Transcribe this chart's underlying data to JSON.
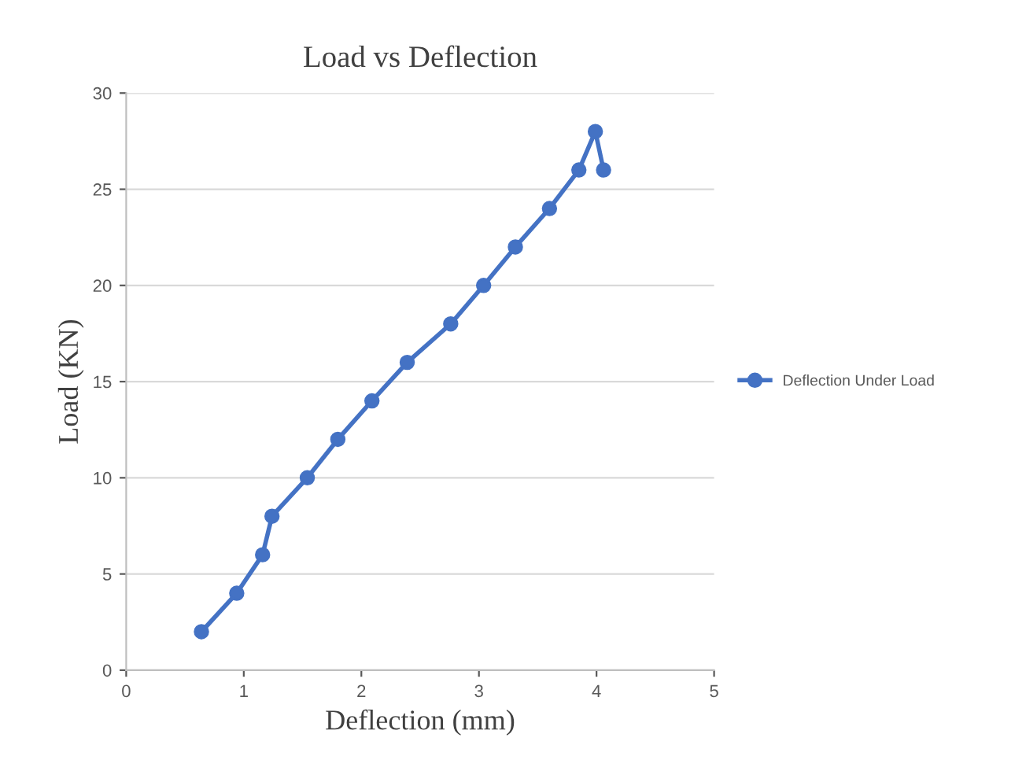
{
  "chart_data": {
    "type": "line",
    "title": "Load vs Deflection",
    "xlabel": "Deflection (mm)",
    "ylabel": "Load (KN)",
    "x": [
      0.64,
      0.94,
      1.16,
      1.24,
      1.54,
      1.8,
      2.09,
      2.39,
      2.76,
      3.04,
      3.31,
      3.6,
      3.85,
      3.99,
      4.06
    ],
    "series": [
      {
        "name": "Deflection Under Load",
        "color": "#4472c4",
        "values": [
          2,
          4,
          6,
          8,
          10,
          12,
          14,
          16,
          18,
          20,
          22,
          24,
          26,
          28,
          26
        ]
      }
    ],
    "xlim": [
      0,
      5
    ],
    "xticks": [
      0,
      1,
      2,
      3,
      4,
      5
    ],
    "ylim": [
      0,
      30
    ],
    "yticks": [
      0,
      5,
      10,
      15,
      20,
      25,
      30
    ],
    "grid": "y",
    "legend": "right",
    "marker": "circle",
    "line_style": "solid"
  }
}
